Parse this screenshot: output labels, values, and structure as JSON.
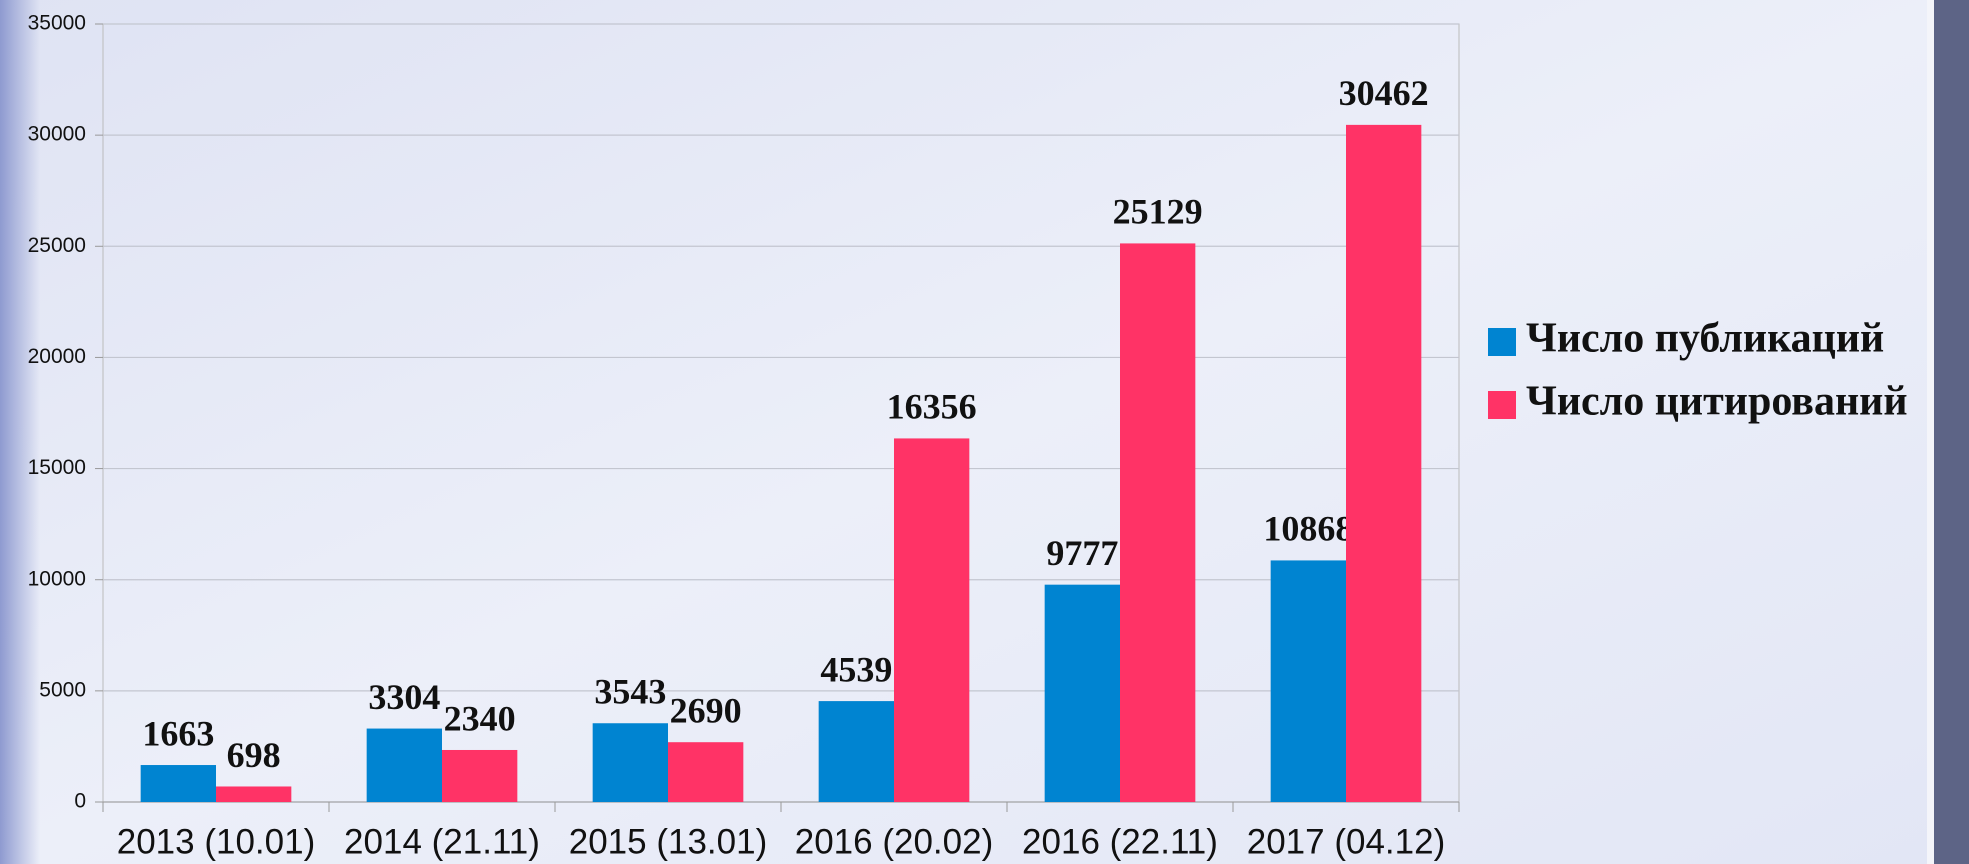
{
  "chart_data": {
    "type": "bar",
    "categories": [
      "2013 (10.01)",
      "2014 (21.11)",
      "2015 (13.01)",
      "2016 (20.02)",
      "2016 (22.11)",
      "2017 (04.12)"
    ],
    "series": [
      {
        "name": "Число публикаций",
        "color": "#0084d1",
        "values": [
          1663,
          3304,
          3543,
          4539,
          9777,
          10868
        ]
      },
      {
        "name": "Число цитирований",
        "color": "#ff3366",
        "values": [
          698,
          2340,
          2690,
          16356,
          25129,
          30462
        ]
      }
    ],
    "ylim": [
      0,
      35000
    ],
    "yticks": [
      0,
      5000,
      10000,
      15000,
      20000,
      25000,
      30000,
      35000
    ],
    "grid": true,
    "legend": "right"
  }
}
